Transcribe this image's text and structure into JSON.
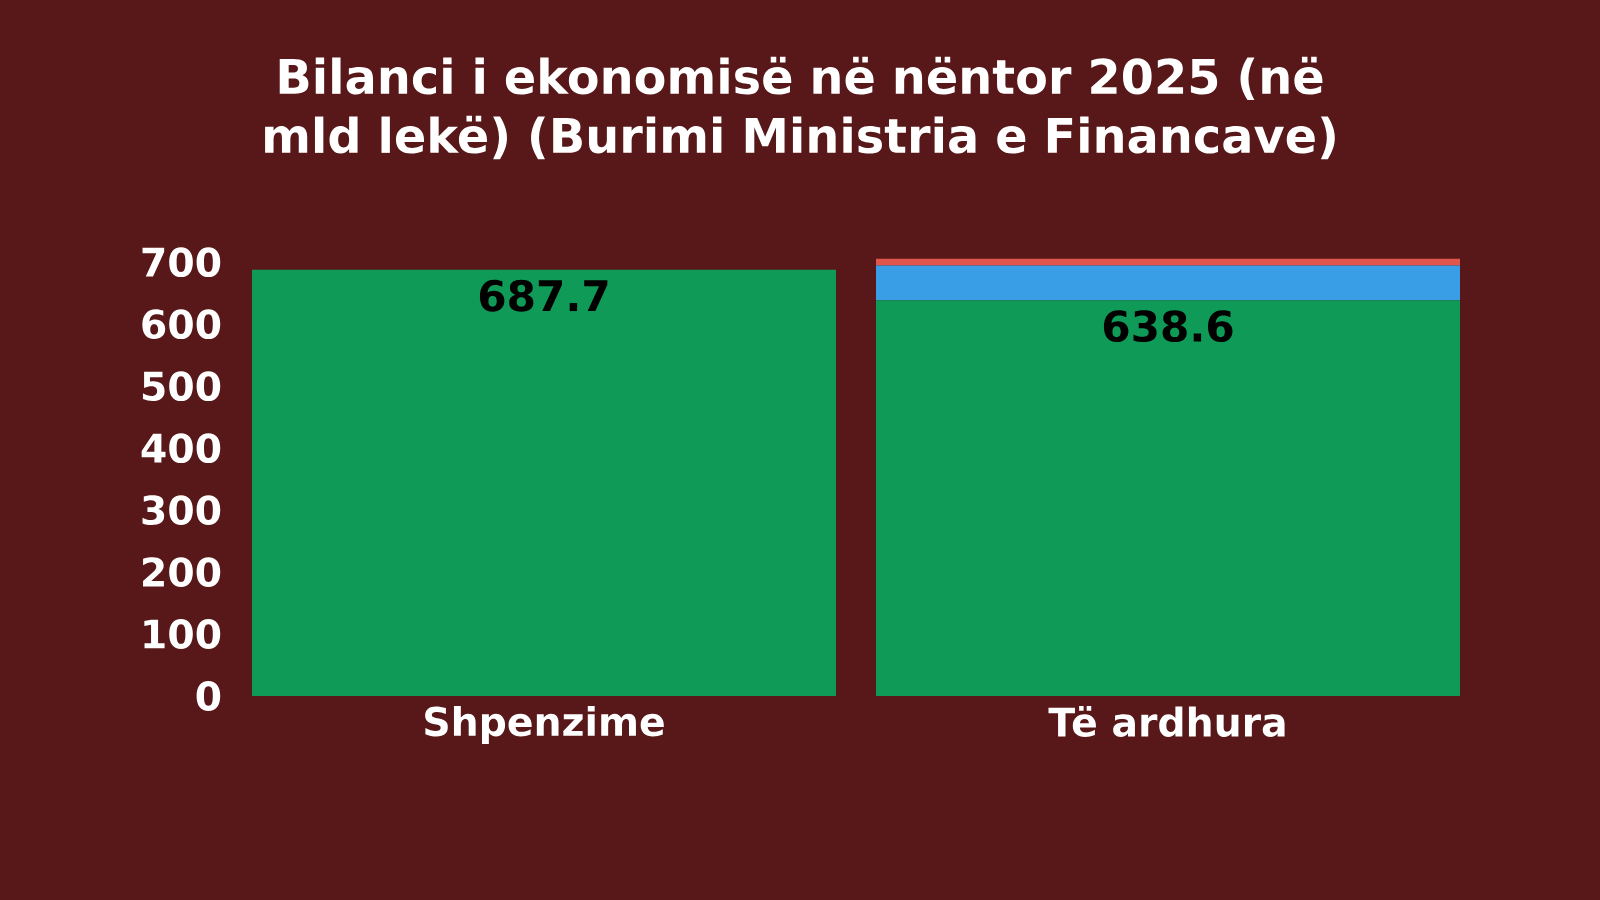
{
  "chart_data": {
    "type": "bar",
    "title": "Bilanci i ekonomisë në nëntor 2025 (në mld lekë) (Burimi Ministria e Financave)",
    "categories": [
      "Shpenzime",
      "Të ardhura"
    ],
    "stacked": true,
    "series": [
      {
        "color": "#0f9a58",
        "values": [
          687.7,
          638.6
        ],
        "value_labels": [
          "687.7",
          "638.6"
        ]
      },
      {
        "color": "#3a9ee6",
        "values": [
          null,
          56
        ]
      },
      {
        "color": "#e0554c",
        "values": [
          null,
          11
        ]
      }
    ],
    "ylim": [
      0,
      710
    ],
    "yticks": [
      0,
      100,
      200,
      300,
      400,
      500,
      600,
      700
    ],
    "grid": false
  }
}
